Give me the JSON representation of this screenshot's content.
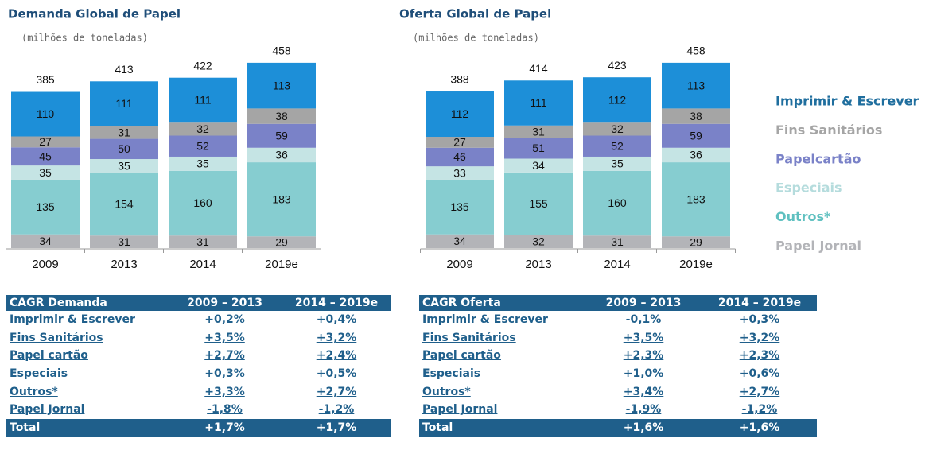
{
  "chart_data": [
    {
      "type": "stacked-bar",
      "title": "Demanda Global de Papel",
      "subtitle": "(milhões de toneladas)",
      "categories": [
        "2009",
        "2013",
        "2014",
        "2019e"
      ],
      "totals": [
        385,
        413,
        422,
        458
      ],
      "series": [
        {
          "color": "#b3b4b8",
          "values": [
            34,
            31,
            31,
            29
          ]
        },
        {
          "color": "#86cdd0",
          "values": [
            135,
            154,
            160,
            183
          ]
        },
        {
          "color": "#c5e4e4",
          "values": [
            35,
            35,
            35,
            36
          ]
        },
        {
          "color": "#7a82c8",
          "values": [
            45,
            50,
            52,
            59
          ]
        },
        {
          "color": "#a5a5a5",
          "values": [
            27,
            31,
            32,
            38
          ]
        },
        {
          "color": "#1d8fd8",
          "values": [
            110,
            111,
            111,
            113
          ]
        }
      ]
    },
    {
      "type": "stacked-bar",
      "title": "Oferta Global de Papel",
      "subtitle": "(milhões de toneladas)",
      "categories": [
        "2009",
        "2013",
        "2014",
        "2019e"
      ],
      "totals": [
        388,
        414,
        423,
        458
      ],
      "series": [
        {
          "name": "Papel Jornal",
          "color": "#b3b4b8",
          "values": [
            34,
            32,
            31,
            29
          ]
        },
        {
          "name": "Outros*",
          "color": "#86cdd0",
          "values": [
            135,
            155,
            160,
            183
          ]
        },
        {
          "name": "Especiais",
          "color": "#c5e4e4",
          "values": [
            33,
            34,
            35,
            36
          ]
        },
        {
          "name": "Papelcartão",
          "color": "#7a82c8",
          "values": [
            46,
            51,
            52,
            59
          ]
        },
        {
          "name": "Fins Sanitários",
          "color": "#a5a5a5",
          "values": [
            27,
            31,
            32,
            38
          ]
        },
        {
          "name": "Imprimir & Escrever",
          "color": "#1d8fd8",
          "values": [
            112,
            111,
            112,
            113
          ]
        }
      ]
    }
  ],
  "tables": [
    {
      "header": [
        "CAGR Demanda",
        "2009 – 2013",
        "2014 – 2019e"
      ],
      "rows": [
        [
          "Imprimir & Escrever",
          "+0,2%",
          "+0,4%"
        ],
        [
          "Fins Sanitários",
          "+3,5%",
          "+3,2%"
        ],
        [
          "Papel cartão",
          "+2,7%",
          "+2,4%"
        ],
        [
          "Especiais",
          "+0,3%",
          "+0,5%"
        ],
        [
          "Outros*",
          "+3,3%",
          "+2,7%"
        ],
        [
          "Papel Jornal",
          "-1,8%",
          "-1,2%"
        ],
        [
          "Total",
          "+1,7%",
          "+1,7%"
        ]
      ]
    },
    {
      "header": [
        "CAGR Oferta",
        "2009 – 2013",
        "2014 – 2019e"
      ],
      "rows": [
        [
          "Imprimir & Escrever",
          "-0,1%",
          "+0,3%"
        ],
        [
          "Fins Sanitários",
          "+3,5%",
          "+3,2%"
        ],
        [
          "Papel cartão",
          "+2,3%",
          "+2,3%"
        ],
        [
          "Especiais",
          "+1,0%",
          "+0,6%"
        ],
        [
          "Outros*",
          "+3,4%",
          "+2,7%"
        ],
        [
          "Papel Jornal",
          "-1,9%",
          "-1,2%"
        ],
        [
          "Total",
          "+1,6%",
          "+1,6%"
        ]
      ]
    }
  ]
}
